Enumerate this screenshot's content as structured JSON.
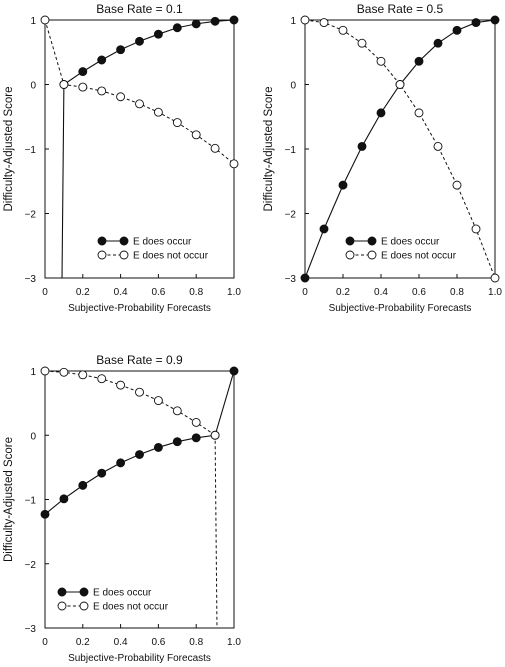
{
  "chart_data": [
    {
      "type": "line",
      "title": "Base Rate = 0.1",
      "xlabel": "Subjective-Probability Forecasts",
      "ylabel": "Difficulty-Adjusted Score",
      "xlim": [
        0,
        1
      ],
      "ylim": [
        -3,
        1
      ],
      "xticks": [
        "0",
        "0.2",
        "0.4",
        "0.6",
        "0.8",
        "1.0"
      ],
      "yticks": [
        "1",
        "0",
        "−1",
        "−2",
        "−3"
      ],
      "legend_position": "bottom-right",
      "grid": false,
      "series": [
        {
          "name": "E does occur",
          "marker": "filled-circle",
          "line": "solid",
          "x": [
            0.1,
            0.2,
            0.3,
            0.4,
            0.5,
            0.6,
            0.7,
            0.8,
            0.9,
            1.0
          ],
          "y": [
            0.0,
            0.2,
            0.38,
            0.54,
            0.67,
            0.78,
            0.88,
            0.94,
            0.98,
            1.0
          ],
          "extension": [
            [
              0.09,
              -3.0
            ],
            [
              0.1,
              0.0
            ]
          ]
        },
        {
          "name": "E does not occur",
          "marker": "open-circle",
          "line": "dashed",
          "x": [
            0.0,
            0.1,
            0.2,
            0.3,
            0.4,
            0.5,
            0.6,
            0.7,
            0.8,
            0.9,
            1.0
          ],
          "y": [
            1.0,
            0.0,
            -0.04,
            -0.1,
            -0.19,
            -0.3,
            -0.43,
            -0.59,
            -0.78,
            -0.99,
            -1.23
          ]
        }
      ]
    },
    {
      "type": "line",
      "title": "Base Rate = 0.5",
      "xlabel": "Subjective-Probability Forecasts",
      "ylabel": "Difficulty-Adjusted Score",
      "xlim": [
        0,
        1
      ],
      "ylim": [
        -3,
        1
      ],
      "xticks": [
        "0",
        "0.2",
        "0.4",
        "0.6",
        "0.8",
        "1.0"
      ],
      "yticks": [
        "1",
        "0",
        "−1",
        "−2",
        "−3"
      ],
      "legend_position": "bottom-right",
      "grid": false,
      "series": [
        {
          "name": "E does occur",
          "marker": "filled-circle",
          "line": "solid",
          "x": [
            0.0,
            0.1,
            0.2,
            0.3,
            0.4,
            0.5,
            0.6,
            0.7,
            0.8,
            0.9,
            1.0
          ],
          "y": [
            -3.0,
            -2.24,
            -1.56,
            -0.96,
            -0.44,
            0.0,
            0.36,
            0.64,
            0.84,
            0.96,
            1.0
          ]
        },
        {
          "name": "E does not occur",
          "marker": "open-circle",
          "line": "dashed",
          "x": [
            0.0,
            0.1,
            0.2,
            0.3,
            0.4,
            0.5,
            0.6,
            0.7,
            0.8,
            0.9,
            1.0
          ],
          "y": [
            1.0,
            0.96,
            0.84,
            0.64,
            0.36,
            0.0,
            -0.44,
            -0.96,
            -1.56,
            -2.24,
            -3.0
          ]
        }
      ]
    },
    {
      "type": "line",
      "title": "Base Rate = 0.9",
      "xlabel": "Subjective-Probability Forecasts",
      "ylabel": "Difficulty-Adjusted Score",
      "xlim": [
        0,
        1
      ],
      "ylim": [
        -3,
        1
      ],
      "xticks": [
        "0",
        "0.2",
        "0.4",
        "0.6",
        "0.8",
        "1.0"
      ],
      "yticks": [
        "1",
        "0",
        "−1",
        "−2",
        "−3"
      ],
      "legend_position": "bottom-left",
      "grid": false,
      "series": [
        {
          "name": "E does occur",
          "marker": "filled-circle",
          "line": "solid",
          "x": [
            0.0,
            0.1,
            0.2,
            0.3,
            0.4,
            0.5,
            0.6,
            0.7,
            0.8,
            0.9,
            1.0
          ],
          "y": [
            -1.23,
            -0.99,
            -0.78,
            -0.59,
            -0.43,
            -0.3,
            -0.19,
            -0.1,
            -0.04,
            0.0,
            1.0
          ]
        },
        {
          "name": "E does not occur",
          "marker": "open-circle",
          "line": "dashed",
          "x": [
            0.0,
            0.1,
            0.2,
            0.3,
            0.4,
            0.5,
            0.6,
            0.7,
            0.8,
            0.9
          ],
          "y": [
            1.0,
            0.98,
            0.94,
            0.88,
            0.78,
            0.67,
            0.54,
            0.38,
            0.2,
            0.0
          ],
          "extension": [
            [
              0.9,
              0.0
            ],
            [
              0.91,
              -3.0
            ]
          ]
        }
      ]
    }
  ]
}
